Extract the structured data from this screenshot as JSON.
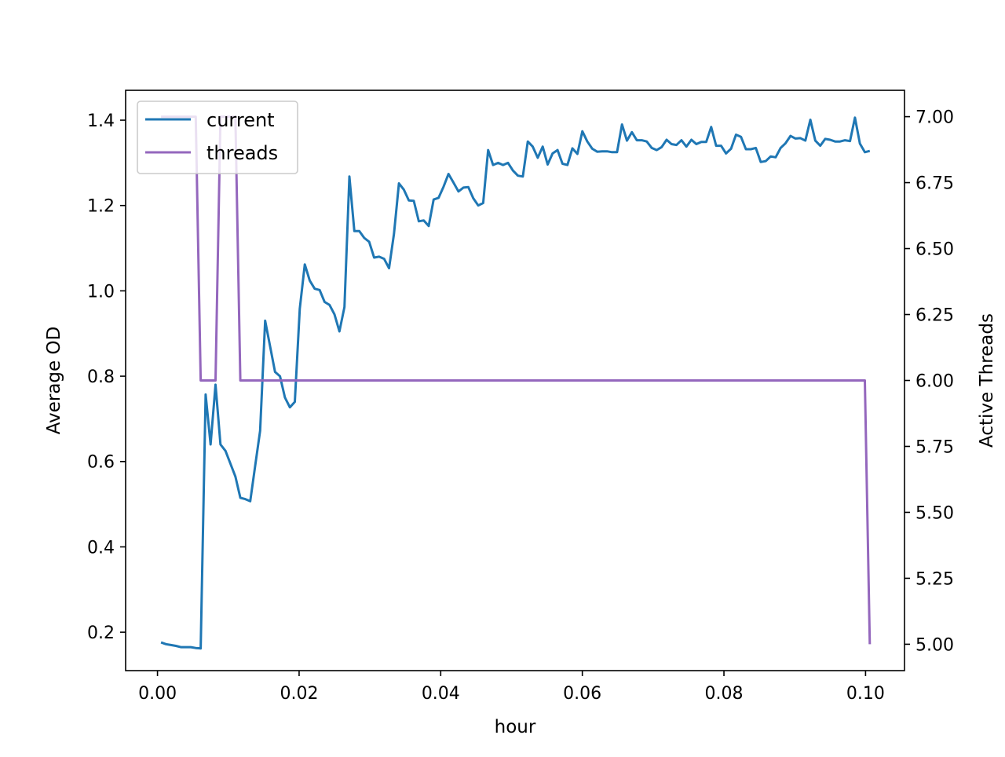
{
  "chart_data": {
    "type": "line",
    "xlabel": "hour",
    "ylabel_left": "Average OD",
    "ylabel_right": "Active Threads",
    "xlim": [
      -0.0045,
      0.1055
    ],
    "ylim_left": [
      0.11,
      1.47
    ],
    "ylim_right": [
      4.9,
      7.1
    ],
    "x_ticks": [
      {
        "v": 0.0,
        "label": "0.00"
      },
      {
        "v": 0.02,
        "label": "0.02"
      },
      {
        "v": 0.04,
        "label": "0.04"
      },
      {
        "v": 0.06,
        "label": "0.06"
      },
      {
        "v": 0.08,
        "label": "0.08"
      },
      {
        "v": 0.1,
        "label": "0.10"
      }
    ],
    "y_left_ticks": [
      {
        "v": 0.2,
        "label": "0.2"
      },
      {
        "v": 0.4,
        "label": "0.4"
      },
      {
        "v": 0.6,
        "label": "0.6"
      },
      {
        "v": 0.8,
        "label": "0.8"
      },
      {
        "v": 1.0,
        "label": "1.0"
      },
      {
        "v": 1.2,
        "label": "1.2"
      },
      {
        "v": 1.4,
        "label": "1.4"
      }
    ],
    "y_right_ticks": [
      {
        "v": 5.0,
        "label": "5.00"
      },
      {
        "v": 5.25,
        "label": "5.25"
      },
      {
        "v": 5.5,
        "label": "5.50"
      },
      {
        "v": 5.75,
        "label": "5.75"
      },
      {
        "v": 6.0,
        "label": "6.00"
      },
      {
        "v": 6.25,
        "label": "6.25"
      },
      {
        "v": 6.5,
        "label": "6.50"
      },
      {
        "v": 6.75,
        "label": "6.75"
      },
      {
        "v": 7.0,
        "label": "7.00"
      }
    ],
    "legend": {
      "position": "upper-left",
      "entries": [
        "current",
        "threads"
      ]
    },
    "grid": false,
    "series": [
      {
        "name": "current",
        "axis": "left",
        "color": "#1f77b4",
        "x": [
          0.0005,
          0.0012,
          0.0019,
          0.0026,
          0.0033,
          0.004,
          0.0047,
          0.0054,
          0.0061,
          0.0068,
          0.0075,
          0.0082,
          0.0089,
          0.0096,
          0.0103,
          0.011,
          0.0117,
          0.0124,
          0.0131,
          0.0138,
          0.0145,
          0.0152,
          0.0159,
          0.0166,
          0.0173,
          0.018,
          0.0187,
          0.0194,
          0.0201,
          0.0208,
          0.0215,
          0.0222,
          0.0229,
          0.0236,
          0.0243,
          0.025,
          0.0257,
          0.0264,
          0.0271,
          0.0278,
          0.0285,
          0.0292,
          0.0299,
          0.0306,
          0.0313,
          0.032,
          0.0327,
          0.0334,
          0.0341,
          0.0348,
          0.0355,
          0.0362,
          0.0369,
          0.0376,
          0.0383,
          0.039,
          0.0397,
          0.0404,
          0.0411,
          0.0418,
          0.0425,
          0.0432,
          0.0439,
          0.0446,
          0.0453,
          0.046,
          0.0467,
          0.0474,
          0.0481,
          0.0488,
          0.0495,
          0.0502,
          0.0509,
          0.0516,
          0.0523,
          0.053,
          0.0537,
          0.0544,
          0.0551,
          0.0558,
          0.0565,
          0.0572,
          0.0579,
          0.0586,
          0.0593,
          0.06,
          0.0607,
          0.0614,
          0.0621,
          0.0628,
          0.0635,
          0.0642,
          0.0649,
          0.0656,
          0.0663,
          0.067,
          0.0677,
          0.0684,
          0.0691,
          0.0698,
          0.0705,
          0.0712,
          0.0719,
          0.0726,
          0.0733,
          0.074,
          0.0747,
          0.0754,
          0.0761,
          0.0768,
          0.0775,
          0.0782,
          0.0789,
          0.0796,
          0.0803,
          0.081,
          0.0817,
          0.0824,
          0.0831,
          0.0838,
          0.0845,
          0.0852,
          0.0859,
          0.0866,
          0.0873,
          0.088,
          0.0887,
          0.0894,
          0.0901,
          0.0908,
          0.0915,
          0.0922,
          0.0929,
          0.0936,
          0.0943,
          0.095,
          0.0957,
          0.0964,
          0.0971,
          0.0978,
          0.0985,
          0.0992,
          0.0999,
          0.1006
        ],
        "values": [
          0.176,
          0.172,
          0.17,
          0.168,
          0.165,
          0.165,
          0.165,
          0.163,
          0.162,
          0.757,
          0.64,
          0.78,
          0.64,
          0.625,
          0.595,
          0.565,
          0.515,
          0.512,
          0.507,
          0.59,
          0.672,
          0.93,
          0.87,
          0.81,
          0.8,
          0.75,
          0.727,
          0.74,
          0.958,
          1.062,
          1.024,
          1.005,
          1.002,
          0.974,
          0.967,
          0.945,
          0.905,
          0.962,
          1.268,
          1.14,
          1.14,
          1.124,
          1.115,
          1.078,
          1.08,
          1.075,
          1.053,
          1.134,
          1.252,
          1.237,
          1.212,
          1.211,
          1.163,
          1.165,
          1.152,
          1.214,
          1.218,
          1.244,
          1.274,
          1.254,
          1.233,
          1.242,
          1.243,
          1.217,
          1.2,
          1.206,
          1.33,
          1.295,
          1.3,
          1.295,
          1.3,
          1.282,
          1.27,
          1.268,
          1.35,
          1.338,
          1.312,
          1.338,
          1.296,
          1.322,
          1.33,
          1.298,
          1.295,
          1.334,
          1.321,
          1.374,
          1.35,
          1.333,
          1.326,
          1.327,
          1.327,
          1.325,
          1.325,
          1.39,
          1.352,
          1.372,
          1.353,
          1.353,
          1.35,
          1.335,
          1.33,
          1.337,
          1.354,
          1.344,
          1.342,
          1.353,
          1.338,
          1.354,
          1.344,
          1.349,
          1.349,
          1.384,
          1.34,
          1.34,
          1.322,
          1.333,
          1.366,
          1.361,
          1.332,
          1.332,
          1.335,
          1.302,
          1.304,
          1.315,
          1.313,
          1.335,
          1.346,
          1.363,
          1.357,
          1.358,
          1.352,
          1.401,
          1.352,
          1.34,
          1.356,
          1.354,
          1.35,
          1.35,
          1.353,
          1.351,
          1.406,
          1.345,
          1.325,
          1.328
        ]
      },
      {
        "name": "threads",
        "axis": "right",
        "color": "#9467bd",
        "x": [
          0.0005,
          0.0054,
          0.0061,
          0.0075,
          0.0082,
          0.0089,
          0.011,
          0.0117,
          0.0999,
          0.1006
        ],
        "values": [
          7,
          7,
          6,
          6,
          6,
          7,
          7,
          6,
          6,
          5
        ]
      }
    ]
  }
}
